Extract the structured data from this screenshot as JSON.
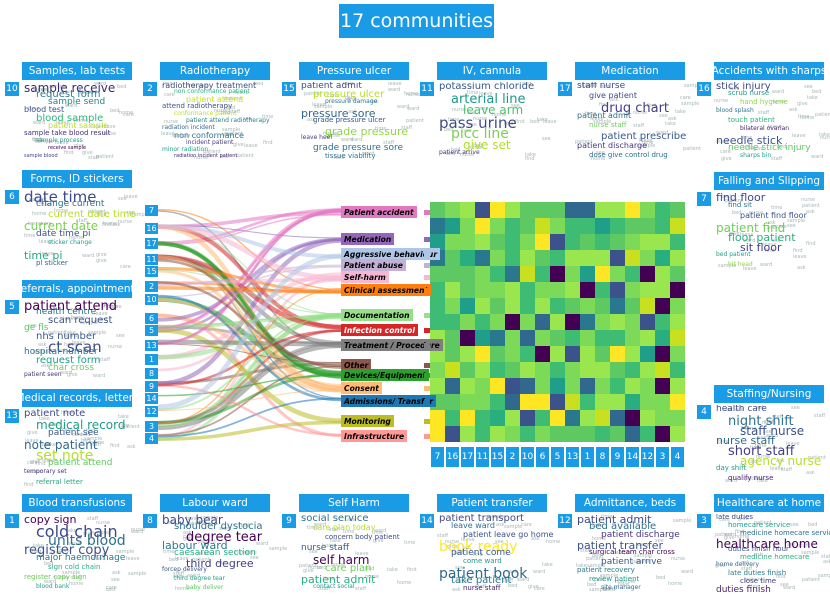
{
  "title": "17 communities",
  "communities": [
    {
      "id": "c10",
      "num": "10",
      "name": "Samples, lab tests",
      "words": [
        [
          "sample receive",
          12,
          "#3b2c74"
        ],
        [
          "request form",
          10,
          "#2d7a8e"
        ],
        [
          "sample send",
          9,
          "#24858e"
        ],
        [
          "blood test",
          8,
          "#3b528b"
        ],
        [
          "blood sample",
          10,
          "#2fb47c"
        ],
        [
          "patient sample",
          8,
          "#bddf26"
        ],
        [
          "sample take blood result",
          7,
          "#46307e"
        ],
        [
          "sample process",
          6,
          "#1f9a8a"
        ],
        [
          "receive sample",
          5,
          "#440154"
        ],
        [
          "sample blood",
          5,
          "#3f4788"
        ]
      ]
    },
    {
      "id": "c2",
      "num": "2",
      "name": "Radiotherapy",
      "words": [
        [
          "radiotherapy treatment",
          8,
          "#3e4a89"
        ],
        [
          "non conformance patient",
          6,
          "#29af7f"
        ],
        [
          "patient attend",
          8,
          "#c8e020"
        ],
        [
          "attend radiotherapy",
          7,
          "#3b528b"
        ],
        [
          "conformance patient",
          6,
          "#b8de29"
        ],
        [
          "patient attend radiotherapy",
          6,
          "#277f8e"
        ],
        [
          "radiation incident",
          6,
          "#31688e"
        ],
        [
          "non conformance",
          8,
          "#2c728e"
        ],
        [
          "incident patient",
          6,
          "#433e85"
        ],
        [
          "minor radiation",
          6,
          "#20a386"
        ],
        [
          "radiation incident patient",
          5,
          "#482173"
        ]
      ]
    },
    {
      "id": "c15",
      "num": "15",
      "name": "Pressure ulcer",
      "words": [
        [
          "patient admit",
          9,
          "#3e4a89"
        ],
        [
          "pressure ulcer",
          10,
          "#b5de2b"
        ],
        [
          "pressure damage",
          6,
          "#2a778e"
        ],
        [
          "pressure sore",
          11,
          "#31688e"
        ],
        [
          "grade pressure ulcer",
          7,
          "#3b528b"
        ],
        [
          "grade pressure",
          11,
          "#8fd744"
        ],
        [
          "leave heel",
          6,
          "#453781"
        ],
        [
          "grade pressure sore",
          9,
          "#2d708e"
        ],
        [
          "tissue viability",
          7,
          "#2c728e"
        ]
      ]
    },
    {
      "id": "c11",
      "num": "11",
      "name": "IV, cannula",
      "words": [
        [
          "potassium chloride",
          10,
          "#38588c"
        ],
        [
          "arterial line",
          13,
          "#1f968b"
        ],
        [
          "leave arm",
          12,
          "#4ac16d"
        ],
        [
          "pass urine",
          15,
          "#3e4a89"
        ],
        [
          "picc line",
          14,
          "#7ad151"
        ],
        [
          "give set",
          12,
          "#b5de2b"
        ],
        [
          "patient arrive",
          6,
          "#46327e"
        ]
      ]
    },
    {
      "id": "c17",
      "num": "17",
      "name": "Medication",
      "words": [
        [
          "staff nurse",
          9,
          "#3e4a89"
        ],
        [
          "give patient",
          8,
          "#3e4989"
        ],
        [
          "drug chart",
          13,
          "#433e85"
        ],
        [
          "patient admit",
          8,
          "#2d708e"
        ],
        [
          "nurse staff",
          7,
          "#6ece58"
        ],
        [
          "patient prescribe",
          10,
          "#38598c"
        ],
        [
          "patient discharge",
          8,
          "#453882"
        ],
        [
          "dose give control drug",
          7,
          "#2c728e"
        ]
      ]
    },
    {
      "id": "c16",
      "num": "16",
      "name": "Accidents with sharps",
      "words": [
        [
          "stick injury",
          10,
          "#3e4a89"
        ],
        [
          "scrub nurse",
          7,
          "#1e9c89"
        ],
        [
          "hand hygiene",
          7,
          "#8fd744"
        ],
        [
          "blood splash",
          6,
          "#2a788e"
        ],
        [
          "touch patient",
          7,
          "#2fb47c"
        ],
        [
          "bilateral ovarian",
          6,
          "#482173"
        ],
        [
          "needle stick",
          11,
          "#3b528b"
        ],
        [
          "needle stick injury",
          9,
          "#5ec962"
        ],
        [
          "sharps bin",
          6,
          "#1fa188"
        ]
      ]
    },
    {
      "id": "c6",
      "num": "6",
      "name": "Forms, ID stickers",
      "words": [
        [
          "date time",
          15,
          "#3e4a89"
        ],
        [
          "change current",
          9,
          "#2c728e"
        ],
        [
          "current date time",
          10,
          "#b5de2b"
        ],
        [
          "current date",
          12,
          "#7ad151"
        ],
        [
          "date time pi",
          9,
          "#3b528b"
        ],
        [
          "sticker change",
          6,
          "#1f9e89"
        ],
        [
          "time pi",
          11,
          "#22a884"
        ],
        [
          "pl sticker",
          7,
          "#31688e"
        ]
      ]
    },
    {
      "id": "c7f",
      "num": "7",
      "name": "Falling and Slipping",
      "words": [
        [
          "find floor",
          11,
          "#3e4a89"
        ],
        [
          "find sit",
          7,
          "#2c728e"
        ],
        [
          "patient find floor",
          8,
          "#3b528b"
        ],
        [
          "patient find",
          12,
          "#6ece58"
        ],
        [
          "floor patient",
          11,
          "#29af7f"
        ],
        [
          "sit floor",
          11,
          "#433e85"
        ],
        [
          "bed patient",
          6,
          "#1f9e89"
        ],
        [
          "hit head",
          6,
          "#8fd744"
        ]
      ]
    },
    {
      "id": "c5",
      "num": "5",
      "name": "Referrals, appointments",
      "words": [
        [
          "patient attend",
          13,
          "#440154"
        ],
        [
          "health centre",
          9,
          "#2c728e"
        ],
        [
          "scan request",
          10,
          "#3b528b"
        ],
        [
          "ge fls",
          9,
          "#5ec962"
        ],
        [
          "nhs number",
          10,
          "#38598c"
        ],
        [
          "ct scan",
          15,
          "#3e4a89"
        ],
        [
          "hospital number",
          9,
          "#2a788e"
        ],
        [
          "request form",
          10,
          "#1f9e89"
        ],
        [
          "char cross",
          9,
          "#6ece58"
        ],
        [
          "patient seen",
          6,
          "#46327e"
        ]
      ]
    },
    {
      "id": "c13",
      "num": "13",
      "name": "Medical records, letters",
      "words": [
        [
          "patient note",
          10,
          "#3e4a89"
        ],
        [
          "medical record",
          12,
          "#1f9e89"
        ],
        [
          "patient see",
          9,
          "#38598c"
        ],
        [
          "note patient",
          12,
          "#31688e"
        ],
        [
          "set note",
          14,
          "#b5de2b"
        ],
        [
          "patient attend",
          9,
          "#5ec962"
        ],
        [
          "temporary set",
          6,
          "#453781"
        ],
        [
          "referral letter",
          7,
          "#22a884"
        ]
      ]
    },
    {
      "id": "c4",
      "num": "4",
      "name": "Staffing/Nursing",
      "words": [
        [
          "health care",
          9,
          "#3e4a89"
        ],
        [
          "night shift",
          13,
          "#2c728e"
        ],
        [
          "staff nurse",
          12,
          "#3b528b"
        ],
        [
          "nurse staff",
          11,
          "#31688e"
        ],
        [
          "short staff",
          13,
          "#433e85"
        ],
        [
          "agency nurse",
          12,
          "#b5de2b"
        ],
        [
          "day shift",
          7,
          "#1f9e89"
        ],
        [
          "qualify nurse",
          7,
          "#482173"
        ]
      ]
    },
    {
      "id": "c1",
      "num": "1",
      "name": "Blood transfusions",
      "words": [
        [
          "copy sign",
          11,
          "#440154"
        ],
        [
          "cold chain",
          16,
          "#3e4a89"
        ],
        [
          "units blood",
          14,
          "#2c728e"
        ],
        [
          "register copy",
          13,
          "#3b528b"
        ],
        [
          "major haemorrhage",
          9,
          "#2a788e"
        ],
        [
          "sign cold chain",
          7,
          "#29af7f"
        ],
        [
          "register copy sign",
          7,
          "#6ece58"
        ],
        [
          "blood bank",
          6,
          "#1f9e89"
        ]
      ]
    },
    {
      "id": "c8",
      "num": "8",
      "name": "Labour ward",
      "words": [
        [
          "baby bear",
          12,
          "#3e4a89"
        ],
        [
          "shoulder dystocia",
          10,
          "#2c728e"
        ],
        [
          "degree tear",
          13,
          "#440154"
        ],
        [
          "labour ward",
          11,
          "#2a788e"
        ],
        [
          "caesarean section",
          9,
          "#29af7f"
        ],
        [
          "third degree",
          11,
          "#433e85"
        ],
        [
          "forcep delivery",
          6,
          "#3b528b"
        ],
        [
          "third degree tear",
          6,
          "#1f9e89"
        ],
        [
          "baby deliver",
          6,
          "#5ec962"
        ]
      ]
    },
    {
      "id": "c9",
      "num": "9",
      "name": "Self Harm",
      "words": [
        [
          "social service",
          10,
          "#2c728e"
        ],
        [
          "care plan today",
          8,
          "#b5de2b"
        ],
        [
          "concern body patient",
          7,
          "#3e4a89"
        ],
        [
          "nurse staff",
          9,
          "#38598c"
        ],
        [
          "self harm",
          12,
          "#440154"
        ],
        [
          "care plan",
          10,
          "#6ece58"
        ],
        [
          "patient admit",
          11,
          "#29af7f"
        ],
        [
          "contact social",
          6,
          "#1f9e89"
        ]
      ]
    },
    {
      "id": "c14",
      "num": "14",
      "name": "Patient transfer",
      "words": [
        [
          "patient transport",
          10,
          "#3e4a89"
        ],
        [
          "leave ward",
          8,
          "#2c728e"
        ],
        [
          "patient leave go home",
          8,
          "#3b528b"
        ],
        [
          "book ready",
          14,
          "#fde725"
        ],
        [
          "patient come",
          9,
          "#38598c"
        ],
        [
          "come ward",
          7,
          "#1f9e89"
        ],
        [
          "patient book",
          14,
          "#31688e"
        ],
        [
          "take patient",
          10,
          "#2a788e"
        ],
        [
          "nurse staff",
          7,
          "#482173"
        ]
      ]
    },
    {
      "id": "c12",
      "num": "12",
      "name": "Admittance, beds",
      "words": [
        [
          "patient admit",
          11,
          "#3e4a89"
        ],
        [
          "bed available",
          10,
          "#2c728e"
        ],
        [
          "patient discharge",
          9,
          "#453781"
        ],
        [
          "patient transfer",
          11,
          "#3b528b"
        ],
        [
          "surgical team char cross",
          7,
          "#440154"
        ],
        [
          "patient arrive",
          9,
          "#38598c"
        ],
        [
          "patient recovery",
          7,
          "#2a788e"
        ],
        [
          "review patient",
          7,
          "#1f9e89"
        ],
        [
          "site manager",
          6,
          "#31688e"
        ]
      ]
    },
    {
      "id": "c3",
      "num": "3",
      "name": "Healthcare at home",
      "words": [
        [
          "late duties",
          7,
          "#3e4a89"
        ],
        [
          "homecare service",
          7,
          "#1f9e89"
        ],
        [
          "medicine homecare service",
          7,
          "#2c728e"
        ],
        [
          "healthcare home",
          12,
          "#440154"
        ],
        [
          "duties finish hour",
          7,
          "#3b528b"
        ],
        [
          "medicine homecare",
          7,
          "#29af7f"
        ],
        [
          "home delivery",
          6,
          "#31688e"
        ],
        [
          "late duties finish",
          7,
          "#2a788e"
        ],
        [
          "close time",
          7,
          "#453781"
        ],
        [
          "duties finish",
          9,
          "#482173"
        ]
      ]
    }
  ],
  "left_numbers": [
    "7",
    "16",
    "17",
    "11",
    "15",
    "2",
    "10",
    "6",
    "5",
    "13",
    "1",
    "8",
    "9",
    "14",
    "12",
    "3",
    "4"
  ],
  "categories": [
    {
      "name": "Patient accident",
      "bg": "#e377c2"
    },
    {
      "name": "Medication",
      "bg": "#9467bd"
    },
    {
      "name": "Aggressive behaviour",
      "bg": "#aec7e8"
    },
    {
      "name": "Patient abuse",
      "bg": "#c5b0d5"
    },
    {
      "name": "Self-harm",
      "bg": "#f7b6d2"
    },
    {
      "name": "Clinical assessment",
      "bg": "#ff7f0e"
    },
    {
      "name": "Documentation",
      "bg": "#98df8a"
    },
    {
      "name": "Infection control",
      "bg": "#d62728"
    },
    {
      "name": "Treatment / Procedure",
      "bg": "#7f7f7f"
    },
    {
      "name": "Other",
      "bg": "#8c564b"
    },
    {
      "name": "Devices/Equipment",
      "bg": "#2ca02c"
    },
    {
      "name": "Consent",
      "bg": "#ffbb78"
    },
    {
      "name": "Admissions/ Transfer",
      "bg": "#1f77b4"
    },
    {
      "name": "Monitoring",
      "bg": "#bcbd22"
    },
    {
      "name": "Infrastructure",
      "bg": "#ff9896"
    }
  ],
  "bottom_numbers": [
    "7",
    "16",
    "17",
    "11",
    "15",
    "2",
    "10",
    "6",
    "5",
    "13",
    "1",
    "8",
    "9",
    "14",
    "12",
    "3",
    "4"
  ]
}
